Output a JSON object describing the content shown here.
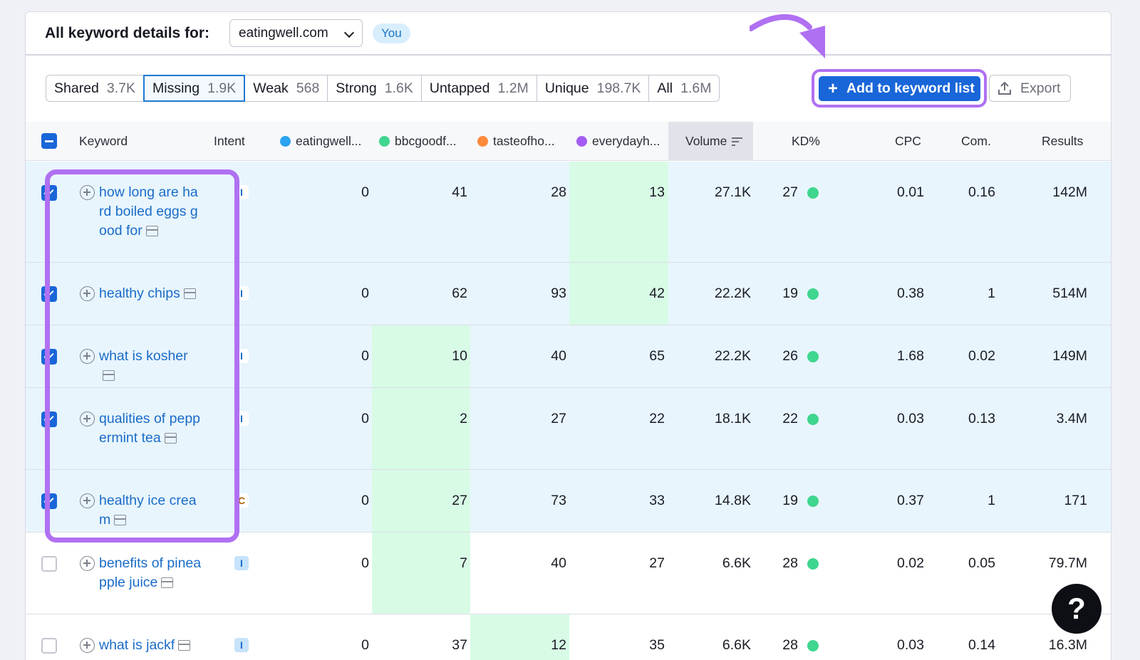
{
  "header": {
    "title": "All keyword details for:",
    "domain": "eatingwell.com",
    "you_badge": "You"
  },
  "tabs": [
    {
      "label": "Shared",
      "count": "3.7K",
      "active": false
    },
    {
      "label": "Missing",
      "count": "1.9K",
      "active": true
    },
    {
      "label": "Weak",
      "count": "568",
      "active": false
    },
    {
      "label": "Strong",
      "count": "1.6K",
      "active": false
    },
    {
      "label": "Untapped",
      "count": "1.2M",
      "active": false
    },
    {
      "label": "Unique",
      "count": "198.7K",
      "active": false
    },
    {
      "label": "All",
      "count": "1.6M",
      "active": false
    }
  ],
  "toolbar": {
    "add_label": "Add to keyword list",
    "export_label": "Export"
  },
  "columns": {
    "keyword": "Keyword",
    "intent": "Intent",
    "competitors": [
      {
        "name": "eatingwell...",
        "color": "#2aa3f0"
      },
      {
        "name": "bbcgoodf...",
        "color": "#3fd68f"
      },
      {
        "name": "tasteofho...",
        "color": "#ff8a3c"
      },
      {
        "name": "everydayh...",
        "color": "#a35df3"
      }
    ],
    "volume": "Volume",
    "kd": "KD%",
    "cpc": "CPC",
    "com": "Com.",
    "results": "Results"
  },
  "rows": [
    {
      "keyword": "how long are hard boiled eggs good for",
      "intent": "I",
      "checked": true,
      "c1": "0",
      "c2": "41",
      "c3": "28",
      "c4": "13",
      "volume": "27.1K",
      "kd": "27",
      "cpc": "0.01",
      "com": "0.16",
      "results": "142M"
    },
    {
      "keyword": "healthy chips",
      "intent": "I",
      "checked": true,
      "c1": "0",
      "c2": "62",
      "c3": "93",
      "c4": "42",
      "volume": "22.2K",
      "kd": "19",
      "cpc": "0.38",
      "com": "1",
      "results": "514M"
    },
    {
      "keyword": "what is kosher",
      "intent": "I",
      "checked": true,
      "c1": "0",
      "c2": "10",
      "c3": "40",
      "c4": "65",
      "volume": "22.2K",
      "kd": "26",
      "cpc": "1.68",
      "com": "0.02",
      "results": "149M"
    },
    {
      "keyword": "qualities of peppermint tea",
      "intent": "I",
      "checked": true,
      "c1": "0",
      "c2": "2",
      "c3": "27",
      "c4": "22",
      "volume": "18.1K",
      "kd": "22",
      "cpc": "0.03",
      "com": "0.13",
      "results": "3.4M"
    },
    {
      "keyword": "healthy ice cream",
      "intent": "C",
      "checked": true,
      "c1": "0",
      "c2": "27",
      "c3": "73",
      "c4": "33",
      "volume": "14.8K",
      "kd": "19",
      "cpc": "0.37",
      "com": "1",
      "results": "171"
    },
    {
      "keyword": "benefits of pineapple juice",
      "intent": "I",
      "checked": false,
      "c1": "0",
      "c2": "7",
      "c3": "40",
      "c4": "27",
      "volume": "6.6K",
      "kd": "28",
      "cpc": "0.02",
      "com": "0.05",
      "results": "79.7M"
    },
    {
      "keyword": "what is jackf",
      "intent": "I",
      "checked": false,
      "c1": "0",
      "c2": "37",
      "c3": "12",
      "c4": "35",
      "volume": "6.6K",
      "kd": "28",
      "cpc": "0.03",
      "com": "0.14",
      "results": "16.3M"
    }
  ],
  "help": "?"
}
